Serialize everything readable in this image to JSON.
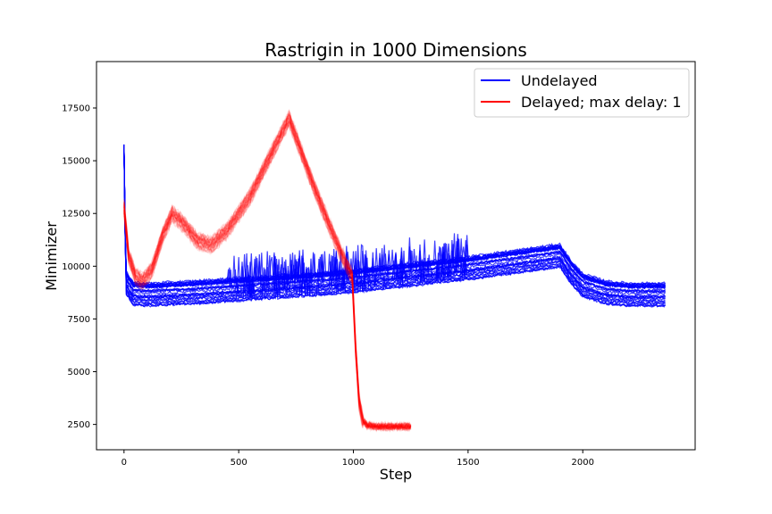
{
  "chart_data": {
    "type": "line",
    "title": "Rastrigin in 1000 Dimensions",
    "xlabel": "Step",
    "ylabel": "Minimizer",
    "xlim": [
      -120,
      2490
    ],
    "ylim": [
      1300,
      19700
    ],
    "xticks": [
      0,
      500,
      1000,
      1500,
      2000
    ],
    "yticks": [
      2500,
      5000,
      7500,
      10000,
      12500,
      15000,
      17500
    ],
    "grid": false,
    "legend_position": "top-right",
    "series": [
      {
        "name": "Undelayed",
        "color": "#0000ff",
        "runs": 30,
        "points": [
          [
            0,
            15600
          ],
          [
            5,
            11500
          ],
          [
            10,
            9200
          ],
          [
            40,
            8700
          ],
          [
            100,
            8650
          ],
          [
            300,
            8750
          ],
          [
            500,
            8900
          ],
          [
            700,
            9050
          ],
          [
            900,
            9200
          ],
          [
            1000,
            9300
          ],
          [
            1500,
            9900
          ],
          [
            1900,
            10500
          ],
          [
            1950,
            9700
          ],
          [
            2000,
            9100
          ],
          [
            2100,
            8750
          ],
          [
            2200,
            8650
          ],
          [
            2360,
            8650
          ]
        ]
      },
      {
        "name": "Delayed; max delay: 1",
        "color": "#ff0000",
        "runs": 40,
        "points": [
          [
            0,
            12800
          ],
          [
            20,
            10500
          ],
          [
            50,
            9500
          ],
          [
            80,
            9300
          ],
          [
            120,
            9800
          ],
          [
            170,
            11500
          ],
          [
            210,
            12500
          ],
          [
            260,
            12000
          ],
          [
            320,
            11200
          ],
          [
            380,
            11000
          ],
          [
            450,
            11700
          ],
          [
            550,
            13300
          ],
          [
            650,
            15500
          ],
          [
            720,
            17000
          ],
          [
            760,
            15800
          ],
          [
            830,
            13700
          ],
          [
            900,
            11800
          ],
          [
            960,
            10300
          ],
          [
            995,
            9500
          ],
          [
            1010,
            6000
          ],
          [
            1025,
            3600
          ],
          [
            1040,
            2700
          ],
          [
            1060,
            2450
          ],
          [
            1100,
            2400
          ],
          [
            1250,
            2400
          ]
        ]
      }
    ]
  }
}
